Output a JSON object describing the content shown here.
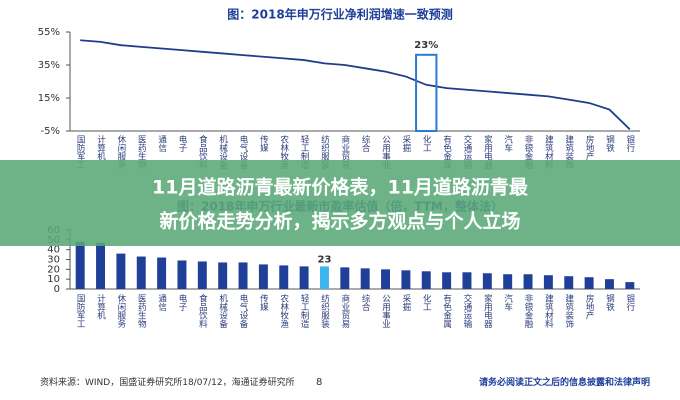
{
  "chart_data": [
    {
      "type": "line",
      "title": "图：2018年申万行业净利润增速一致预测",
      "categories": [
        "国防军工",
        "计算机",
        "休闲服务",
        "医药生物",
        "通信",
        "电子",
        "食品饮料",
        "机械设备",
        "电气设备",
        "传媒",
        "农林牧渔",
        "轻工制造",
        "纺织服装",
        "商业贸易",
        "综合",
        "公用事业",
        "采掘",
        "化工",
        "有色金属",
        "交通运输",
        "家用电器",
        "汽车",
        "非银金融",
        "建筑材料",
        "建筑装饰",
        "房地产",
        "钢铁",
        "银行"
      ],
      "values": [
        50,
        49,
        47,
        46,
        45,
        44,
        43,
        42,
        41,
        40,
        39,
        38,
        36,
        35,
        33,
        31,
        28,
        23,
        21,
        20,
        19,
        18,
        17,
        16,
        14,
        12,
        8,
        -4
      ],
      "value_labels": [
        null,
        null,
        null,
        null,
        null,
        null,
        null,
        null,
        null,
        null,
        null,
        null,
        null,
        null,
        null,
        null,
        null,
        "23%",
        null,
        null,
        null,
        null,
        null,
        null,
        null,
        null,
        null,
        null
      ],
      "highlight": "化工",
      "highlight_color": "#2b7bd6",
      "color": "#1f3d8a",
      "ylim": [
        -5,
        55
      ],
      "yticks": [
        {
          "value": -5,
          "label": "-5%"
        },
        {
          "value": 15,
          "label": "15%"
        },
        {
          "value": 35,
          "label": "35%"
        },
        {
          "value": 55,
          "label": "55%"
        }
      ]
    },
    {
      "type": "bar",
      "title": "图：2018年申万行业最新市盈率估值（倍，TTM，整体法）",
      "categories": [
        "国防军工",
        "计算机",
        "休闲服务",
        "医药生物",
        "通信",
        "电子",
        "食品饮料",
        "机械设备",
        "电气设备",
        "传媒",
        "农林牧渔",
        "轻工制造",
        "纺织服装",
        "商业贸易",
        "综合",
        "公用事业",
        "采掘",
        "化工",
        "有色金属",
        "交通运输",
        "家用电器",
        "汽车",
        "非银金融",
        "建筑材料",
        "建筑装饰",
        "房地产",
        "钢铁",
        "银行"
      ],
      "values": [
        48,
        47,
        36,
        33,
        32,
        29,
        28,
        27,
        27,
        25,
        24,
        23,
        23,
        22,
        21,
        20,
        19,
        18,
        17,
        17,
        16,
        15,
        15,
        14,
        13,
        12,
        10,
        7
      ],
      "value_labels": [
        null,
        null,
        null,
        null,
        null,
        null,
        null,
        null,
        null,
        null,
        null,
        null,
        "23",
        null,
        null,
        null,
        null,
        null,
        null,
        null,
        null,
        null,
        null,
        null,
        null,
        null,
        null,
        null
      ],
      "highlight": "纺织服装",
      "highlight_color": "#3db6f0",
      "color": "#1f3f99",
      "ylim": [
        0,
        60
      ],
      "yticks": [
        0,
        10,
        20,
        30,
        40,
        50,
        60
      ]
    }
  ],
  "banner": {
    "line1": "11月道路沥青最新价格表，11月道路沥青最",
    "line2": "新价格走势分析，揭示多方观点与个人立场"
  },
  "footer": {
    "source": "资料来源：WIND，国盛证券研究所18/07/12，海通证券研究所",
    "page": "8",
    "notice": "请务必阅读正文之后的信息披露和法律声明"
  }
}
